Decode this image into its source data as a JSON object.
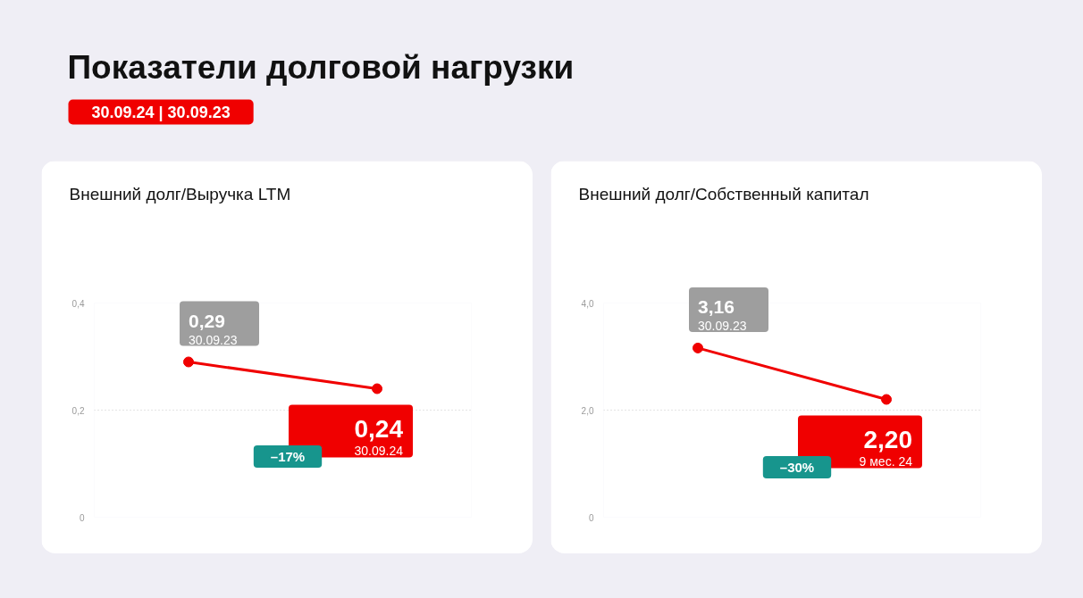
{
  "chart_data": [
    {
      "type": "other",
      "title": "Показатели долговой нагрузки",
      "subtitle": "30.09.24 | 30.09.23"
    },
    {
      "type": "line",
      "title": "Внешний долг/Выручка LTM",
      "categories": [
        null,
        null
      ],
      "values": [
        0.29,
        0.24
      ],
      "color": "#f00000",
      "value_labels": [
        "0,29",
        "0,24"
      ],
      "annotations": [
        "30.09.23",
        "30.09.24",
        "–17%"
      ],
      "ylim": [
        0,
        0.4
      ],
      "yticks": [
        0,
        {
          "value": 0.2,
          "label": "0,2"
        },
        {
          "value": 0.4,
          "label": "0,4"
        }
      ],
      "grid": "y",
      "marker": "circle",
      "tick_labels": "y"
    },
    {
      "type": "line",
      "title": "Внешний долг/Собственный капитал",
      "categories": [
        null,
        null
      ],
      "values": [
        3.16,
        2.2
      ],
      "color": "#f00000",
      "value_labels": [
        "3,16",
        "2,20"
      ],
      "annotations": [
        "30.09.23",
        "9 мес. 24",
        "–30%"
      ],
      "ylim": [
        0,
        4
      ],
      "yticks": [
        0,
        {
          "value": 2,
          "label": "2,0"
        },
        {
          "value": 4,
          "label": "4,0"
        }
      ],
      "grid": "y",
      "marker": "circle",
      "tick_labels": "y"
    }
  ]
}
